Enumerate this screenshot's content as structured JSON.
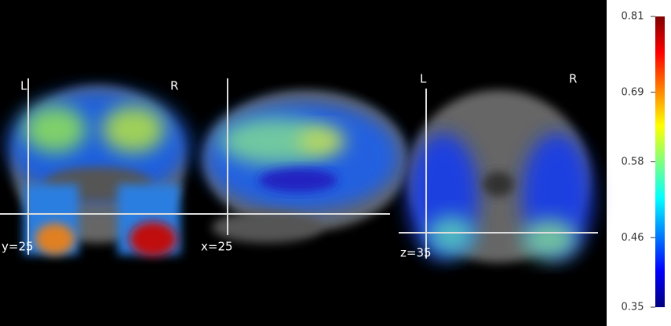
{
  "panels": [
    {
      "coordinate": "y=25",
      "left": "L",
      "right": "R"
    },
    {
      "coordinate": "x=25"
    },
    {
      "coordinate": "z=35",
      "left": "L",
      "right": "R"
    }
  ],
  "colorbar": {
    "clim": [
      0.35,
      0.81
    ],
    "ticks": [
      0.35,
      0.46,
      0.58,
      0.69,
      0.81
    ]
  }
}
